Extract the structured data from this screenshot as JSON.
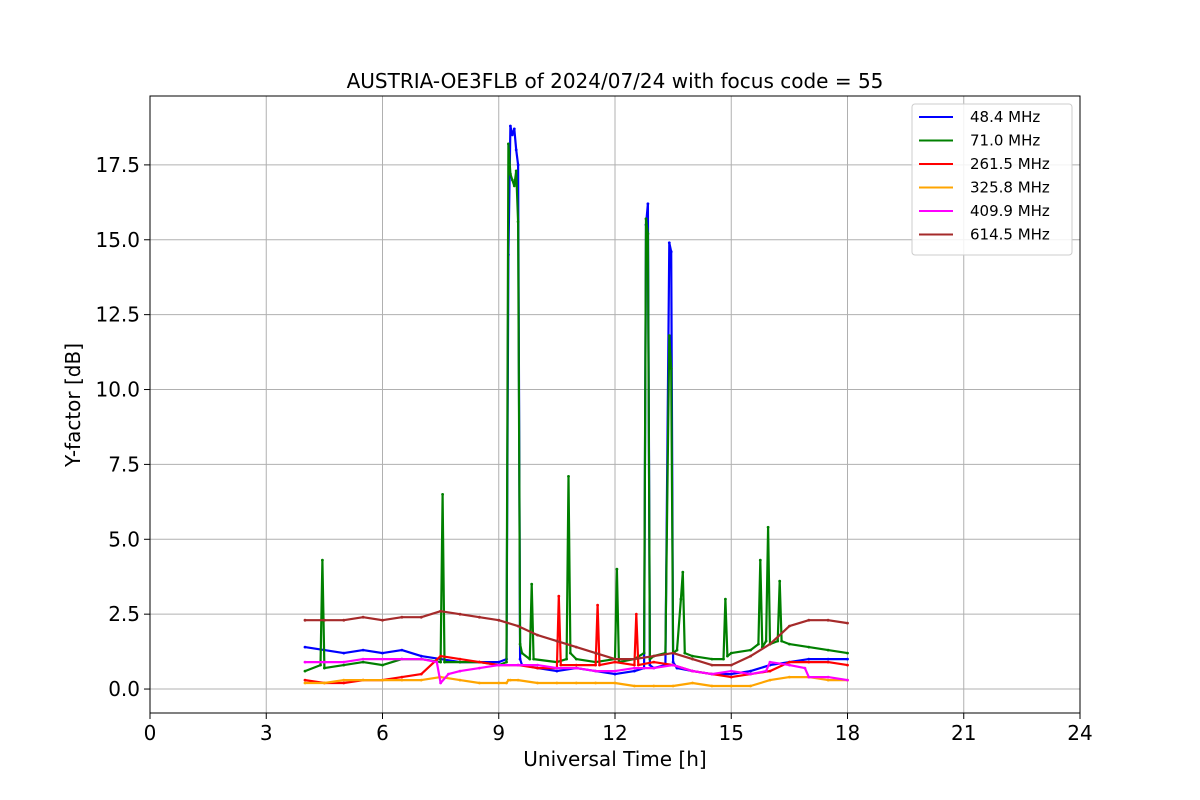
{
  "chart_data": {
    "type": "line",
    "title": "AUSTRIA-OE3FLB of 2024/07/24 with focus code = 55",
    "xlabel": "Universal Time [h]",
    "ylabel": "Y-factor [dB]",
    "xlim": [
      0,
      24
    ],
    "ylim": [
      -0.8,
      19.8
    ],
    "xticks": [
      0,
      3,
      6,
      9,
      12,
      15,
      18,
      21,
      24
    ],
    "xtick_labels": [
      "0",
      "3",
      "6",
      "9",
      "12",
      "15",
      "18",
      "21",
      "24"
    ],
    "yticks": [
      0.0,
      2.5,
      5.0,
      7.5,
      10.0,
      12.5,
      15.0,
      17.5
    ],
    "ytick_labels": [
      "0.0",
      "2.5",
      "5.0",
      "7.5",
      "10.0",
      "12.5",
      "15.0",
      "17.5"
    ],
    "grid": true,
    "legend_position": "top-right",
    "series": [
      {
        "name": " 48.4 MHz",
        "color": "#0000ff",
        "x": [
          4.0,
          4.5,
          5.0,
          5.5,
          6.0,
          6.5,
          7.0,
          7.5,
          8.0,
          8.5,
          9.0,
          9.2,
          9.25,
          9.3,
          9.35,
          9.4,
          9.45,
          9.5,
          9.55,
          9.6,
          10.0,
          10.5,
          11.0,
          11.5,
          12.0,
          12.5,
          12.75,
          12.8,
          12.85,
          12.9,
          13.0,
          13.3,
          13.4,
          13.45,
          13.5,
          13.6,
          14.0,
          14.5,
          15.0,
          15.5,
          16.0,
          16.5,
          17.0,
          17.5,
          18.0
        ],
        "y": [
          1.4,
          1.3,
          1.2,
          1.3,
          1.2,
          1.3,
          1.1,
          1.0,
          0.9,
          0.9,
          0.9,
          1.0,
          14.5,
          18.8,
          18.5,
          18.7,
          18.0,
          17.5,
          1.0,
          0.8,
          0.7,
          0.6,
          0.7,
          0.6,
          0.5,
          0.6,
          0.7,
          15.5,
          16.2,
          0.8,
          0.7,
          0.8,
          14.9,
          14.6,
          0.9,
          0.7,
          0.6,
          0.5,
          0.5,
          0.6,
          0.8,
          0.9,
          1.0,
          1.0,
          1.0
        ]
      },
      {
        "name": " 71.0 MHz",
        "color": "#008000",
        "x": [
          4.0,
          4.4,
          4.45,
          4.5,
          5.0,
          5.5,
          6.0,
          6.5,
          7.0,
          7.5,
          7.55,
          7.6,
          8.0,
          8.5,
          9.0,
          9.2,
          9.25,
          9.3,
          9.35,
          9.4,
          9.45,
          9.5,
          9.55,
          9.6,
          9.8,
          9.85,
          9.9,
          10.5,
          10.75,
          10.8,
          10.85,
          11.0,
          11.5,
          12.0,
          12.05,
          12.1,
          12.5,
          12.75,
          12.8,
          12.85,
          12.9,
          13.0,
          13.3,
          13.4,
          13.45,
          13.5,
          13.6,
          13.7,
          13.75,
          13.8,
          14.0,
          14.5,
          14.8,
          14.85,
          14.9,
          15.0,
          15.5,
          15.7,
          15.75,
          15.8,
          15.9,
          15.95,
          16.0,
          16.2,
          16.25,
          16.3,
          16.5,
          17.0,
          17.5,
          18.0
        ],
        "y": [
          0.6,
          0.8,
          4.3,
          0.7,
          0.8,
          0.9,
          0.8,
          1.0,
          1.0,
          0.9,
          6.5,
          0.9,
          0.9,
          0.9,
          0.8,
          0.9,
          18.2,
          17.2,
          17.0,
          16.8,
          17.3,
          15.6,
          1.5,
          1.2,
          1.0,
          3.5,
          1.0,
          0.9,
          1.0,
          7.1,
          1.2,
          1.0,
          0.9,
          1.0,
          4.0,
          0.9,
          1.0,
          1.2,
          15.7,
          15.2,
          1.0,
          1.1,
          1.2,
          11.8,
          10.7,
          1.2,
          1.3,
          3.0,
          3.9,
          1.2,
          1.1,
          1.0,
          1.0,
          3.0,
          1.1,
          1.2,
          1.3,
          1.5,
          4.3,
          1.4,
          1.6,
          5.4,
          1.5,
          1.6,
          3.6,
          1.6,
          1.5,
          1.4,
          1.3,
          1.2
        ]
      },
      {
        "name": "261.5 MHz",
        "color": "#ff0000",
        "x": [
          4.0,
          4.5,
          5.0,
          5.5,
          6.0,
          6.5,
          7.0,
          7.5,
          8.0,
          8.5,
          9.0,
          9.5,
          10.0,
          10.5,
          10.55,
          10.6,
          11.0,
          11.5,
          11.55,
          11.6,
          12.0,
          12.5,
          12.55,
          12.6,
          13.0,
          13.5,
          14.0,
          14.5,
          15.0,
          15.5,
          16.0,
          16.5,
          17.0,
          17.5,
          18.0
        ],
        "y": [
          0.3,
          0.2,
          0.2,
          0.3,
          0.3,
          0.4,
          0.5,
          1.1,
          1.0,
          0.9,
          0.8,
          0.8,
          0.7,
          0.7,
          3.1,
          0.8,
          0.8,
          0.8,
          2.8,
          0.8,
          0.9,
          0.8,
          2.5,
          0.8,
          0.9,
          0.8,
          0.6,
          0.5,
          0.4,
          0.5,
          0.6,
          0.9,
          0.9,
          0.9,
          0.8
        ]
      },
      {
        "name": "325.8 MHz",
        "color": "#ffa500",
        "x": [
          4.0,
          4.5,
          5.0,
          5.5,
          6.0,
          6.5,
          7.0,
          7.5,
          8.0,
          8.5,
          9.0,
          9.2,
          9.25,
          9.3,
          9.5,
          10.0,
          10.5,
          11.0,
          11.5,
          12.0,
          12.5,
          13.0,
          13.5,
          14.0,
          14.5,
          15.0,
          15.5,
          16.0,
          16.5,
          17.0,
          17.5,
          18.0
        ],
        "y": [
          0.2,
          0.2,
          0.3,
          0.3,
          0.3,
          0.3,
          0.3,
          0.4,
          0.3,
          0.2,
          0.2,
          0.2,
          0.3,
          0.3,
          0.3,
          0.2,
          0.2,
          0.2,
          0.2,
          0.2,
          0.1,
          0.1,
          0.1,
          0.2,
          0.1,
          0.1,
          0.1,
          0.3,
          0.4,
          0.4,
          0.3,
          0.3
        ]
      },
      {
        "name": "409.9 MHz",
        "color": "#ff00ff",
        "x": [
          4.0,
          4.5,
          5.0,
          5.5,
          6.0,
          6.5,
          7.0,
          7.4,
          7.5,
          7.7,
          8.0,
          8.5,
          9.0,
          9.5,
          10.0,
          10.5,
          11.0,
          11.5,
          12.0,
          12.5,
          13.0,
          13.5,
          14.0,
          14.5,
          15.0,
          15.5,
          15.9,
          16.0,
          16.5,
          16.9,
          17.0,
          17.5,
          18.0
        ],
        "y": [
          0.9,
          0.9,
          0.9,
          1.0,
          1.0,
          1.0,
          1.0,
          0.9,
          0.2,
          0.5,
          0.6,
          0.7,
          0.8,
          0.8,
          0.8,
          0.7,
          0.7,
          0.6,
          0.6,
          0.7,
          0.7,
          0.8,
          0.6,
          0.5,
          0.6,
          0.5,
          0.6,
          0.9,
          0.8,
          0.7,
          0.4,
          0.4,
          0.3
        ]
      },
      {
        "name": "614.5 MHz",
        "color": "#a52a2a",
        "x": [
          4.0,
          4.5,
          5.0,
          5.5,
          6.0,
          6.5,
          7.0,
          7.5,
          8.0,
          8.5,
          9.0,
          9.5,
          10.0,
          10.5,
          11.0,
          11.5,
          12.0,
          12.5,
          13.0,
          13.5,
          14.0,
          14.5,
          15.0,
          15.5,
          16.0,
          16.5,
          17.0,
          17.5,
          18.0
        ],
        "y": [
          2.3,
          2.3,
          2.3,
          2.4,
          2.3,
          2.4,
          2.4,
          2.6,
          2.5,
          2.4,
          2.3,
          2.1,
          1.8,
          1.6,
          1.4,
          1.2,
          1.0,
          1.0,
          1.1,
          1.2,
          1.0,
          0.8,
          0.8,
          1.1,
          1.5,
          2.1,
          2.3,
          2.3,
          2.2
        ]
      }
    ]
  }
}
